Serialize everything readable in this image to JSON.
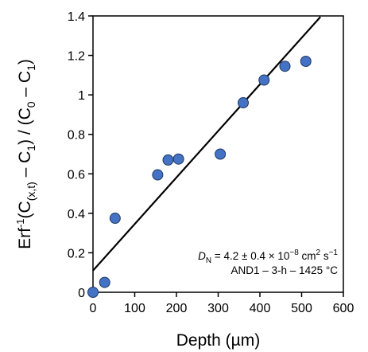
{
  "chart_data": {
    "type": "scatter",
    "xlabel": "Depth (µm)",
    "ylabel": {
      "parts": [
        "Erf",
        "-1",
        "(C",
        "(x,t)",
        " – C",
        "1",
        ") / (C",
        "0",
        " – C",
        "1",
        ")"
      ]
    },
    "xlim": [
      0,
      600
    ],
    "ylim": [
      0,
      1.4
    ],
    "x_ticks": [
      "0",
      "100",
      "200",
      "300",
      "400",
      "500",
      "600"
    ],
    "y_ticks": [
      "0",
      "0.2",
      "0.4",
      "0.6",
      "0.8",
      "1",
      "1.2",
      "1.4"
    ],
    "grid": false,
    "points": [
      {
        "x": 0,
        "y": 0.0
      },
      {
        "x": 28,
        "y": 0.05
      },
      {
        "x": 53,
        "y": 0.375
      },
      {
        "x": 155,
        "y": 0.595
      },
      {
        "x": 180,
        "y": 0.67
      },
      {
        "x": 205,
        "y": 0.675
      },
      {
        "x": 305,
        "y": 0.7
      },
      {
        "x": 360,
        "y": 0.96
      },
      {
        "x": 410,
        "y": 1.075
      },
      {
        "x": 460,
        "y": 1.145
      },
      {
        "x": 510,
        "y": 1.17
      }
    ],
    "fit_line": {
      "x": [
        0,
        545
      ],
      "y": [
        0.11,
        1.395
      ]
    },
    "annotation": {
      "line1_D": "D",
      "line1_sub": "N",
      "line1_rest": " = 4.2 ± 0.4 × 10",
      "line1_exp": "−8",
      "line1_unit": " cm",
      "line1_unit_exp": "2",
      "line1_s": " s",
      "line1_s_exp": "−1",
      "line2": "AND1 – 3-h – 1425 °C"
    },
    "marker_color": "#4472c4",
    "marker_edge": "#1f3864",
    "line_color": "#000000"
  }
}
